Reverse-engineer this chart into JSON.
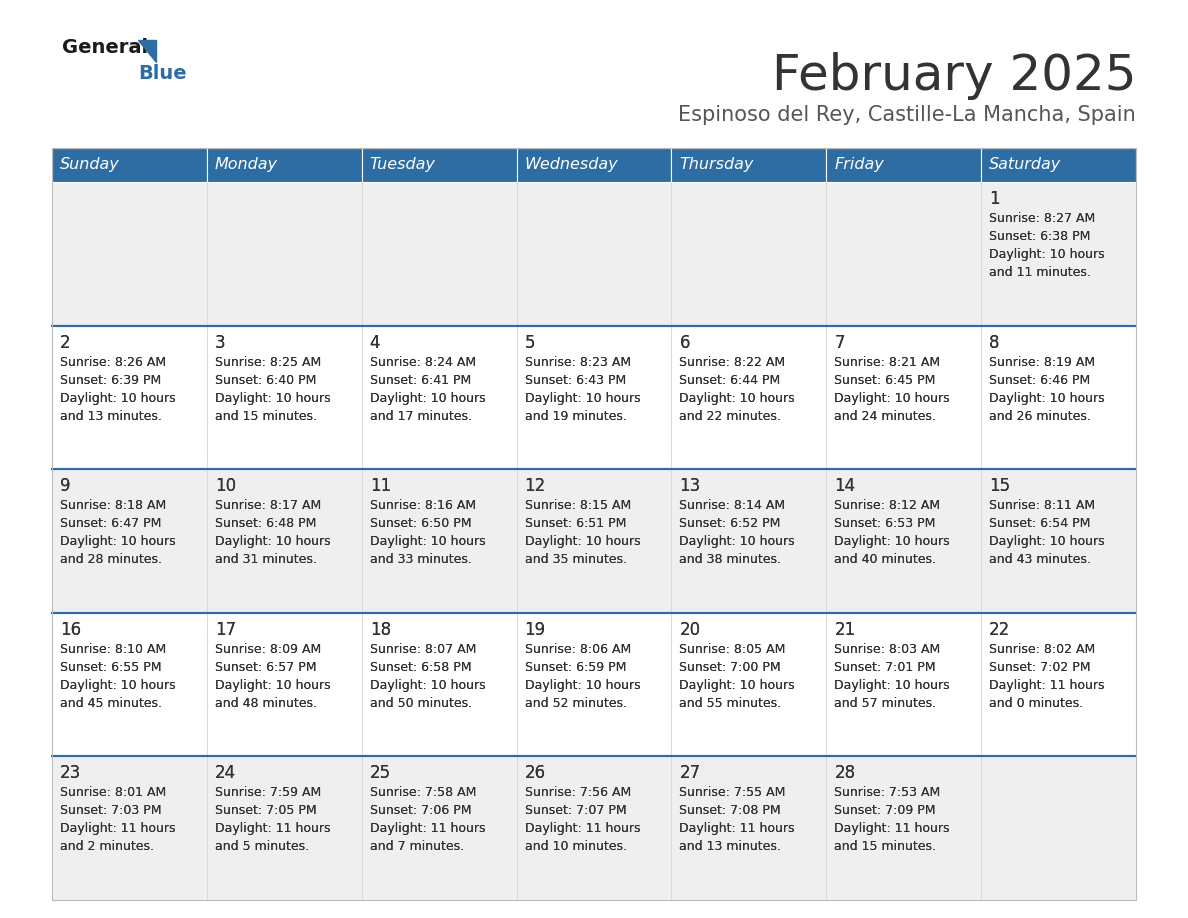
{
  "title": "February 2025",
  "subtitle": "Espinoso del Rey, Castille-La Mancha, Spain",
  "days_of_week": [
    "Sunday",
    "Monday",
    "Tuesday",
    "Wednesday",
    "Thursday",
    "Friday",
    "Saturday"
  ],
  "header_bg": "#2E6DA4",
  "header_text": "#FFFFFF",
  "cell_bg_light": "#EFEFEF",
  "cell_bg_white": "#FFFFFF",
  "divider_color": "#2E6DA4",
  "text_color": "#333333",
  "title_color": "#333333",
  "subtitle_color": "#555555",
  "logo_general_color": "#1a1a1a",
  "logo_blue_color": "#2E6DA4",
  "calendar_data": [
    [
      null,
      null,
      null,
      null,
      null,
      null,
      {
        "day": 1,
        "sunrise": "8:27 AM",
        "sunset": "6:38 PM",
        "daylight": "10 hours\nand 11 minutes."
      }
    ],
    [
      {
        "day": 2,
        "sunrise": "8:26 AM",
        "sunset": "6:39 PM",
        "daylight": "10 hours\nand 13 minutes."
      },
      {
        "day": 3,
        "sunrise": "8:25 AM",
        "sunset": "6:40 PM",
        "daylight": "10 hours\nand 15 minutes."
      },
      {
        "day": 4,
        "sunrise": "8:24 AM",
        "sunset": "6:41 PM",
        "daylight": "10 hours\nand 17 minutes."
      },
      {
        "day": 5,
        "sunrise": "8:23 AM",
        "sunset": "6:43 PM",
        "daylight": "10 hours\nand 19 minutes."
      },
      {
        "day": 6,
        "sunrise": "8:22 AM",
        "sunset": "6:44 PM",
        "daylight": "10 hours\nand 22 minutes."
      },
      {
        "day": 7,
        "sunrise": "8:21 AM",
        "sunset": "6:45 PM",
        "daylight": "10 hours\nand 24 minutes."
      },
      {
        "day": 8,
        "sunrise": "8:19 AM",
        "sunset": "6:46 PM",
        "daylight": "10 hours\nand 26 minutes."
      }
    ],
    [
      {
        "day": 9,
        "sunrise": "8:18 AM",
        "sunset": "6:47 PM",
        "daylight": "10 hours\nand 28 minutes."
      },
      {
        "day": 10,
        "sunrise": "8:17 AM",
        "sunset": "6:48 PM",
        "daylight": "10 hours\nand 31 minutes."
      },
      {
        "day": 11,
        "sunrise": "8:16 AM",
        "sunset": "6:50 PM",
        "daylight": "10 hours\nand 33 minutes."
      },
      {
        "day": 12,
        "sunrise": "8:15 AM",
        "sunset": "6:51 PM",
        "daylight": "10 hours\nand 35 minutes."
      },
      {
        "day": 13,
        "sunrise": "8:14 AM",
        "sunset": "6:52 PM",
        "daylight": "10 hours\nand 38 minutes."
      },
      {
        "day": 14,
        "sunrise": "8:12 AM",
        "sunset": "6:53 PM",
        "daylight": "10 hours\nand 40 minutes."
      },
      {
        "day": 15,
        "sunrise": "8:11 AM",
        "sunset": "6:54 PM",
        "daylight": "10 hours\nand 43 minutes."
      }
    ],
    [
      {
        "day": 16,
        "sunrise": "8:10 AM",
        "sunset": "6:55 PM",
        "daylight": "10 hours\nand 45 minutes."
      },
      {
        "day": 17,
        "sunrise": "8:09 AM",
        "sunset": "6:57 PM",
        "daylight": "10 hours\nand 48 minutes."
      },
      {
        "day": 18,
        "sunrise": "8:07 AM",
        "sunset": "6:58 PM",
        "daylight": "10 hours\nand 50 minutes."
      },
      {
        "day": 19,
        "sunrise": "8:06 AM",
        "sunset": "6:59 PM",
        "daylight": "10 hours\nand 52 minutes."
      },
      {
        "day": 20,
        "sunrise": "8:05 AM",
        "sunset": "7:00 PM",
        "daylight": "10 hours\nand 55 minutes."
      },
      {
        "day": 21,
        "sunrise": "8:03 AM",
        "sunset": "7:01 PM",
        "daylight": "10 hours\nand 57 minutes."
      },
      {
        "day": 22,
        "sunrise": "8:02 AM",
        "sunset": "7:02 PM",
        "daylight": "11 hours\nand 0 minutes."
      }
    ],
    [
      {
        "day": 23,
        "sunrise": "8:01 AM",
        "sunset": "7:03 PM",
        "daylight": "11 hours\nand 2 minutes."
      },
      {
        "day": 24,
        "sunrise": "7:59 AM",
        "sunset": "7:05 PM",
        "daylight": "11 hours\nand 5 minutes."
      },
      {
        "day": 25,
        "sunrise": "7:58 AM",
        "sunset": "7:06 PM",
        "daylight": "11 hours\nand 7 minutes."
      },
      {
        "day": 26,
        "sunrise": "7:56 AM",
        "sunset": "7:07 PM",
        "daylight": "11 hours\nand 10 minutes."
      },
      {
        "day": 27,
        "sunrise": "7:55 AM",
        "sunset": "7:08 PM",
        "daylight": "11 hours\nand 13 minutes."
      },
      {
        "day": 28,
        "sunrise": "7:53 AM",
        "sunset": "7:09 PM",
        "daylight": "11 hours\nand 15 minutes."
      },
      null
    ]
  ]
}
